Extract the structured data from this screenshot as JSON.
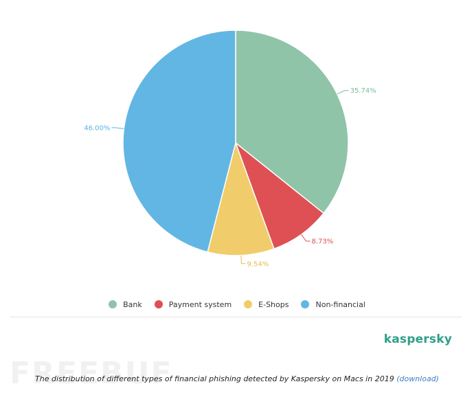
{
  "chart_data": {
    "type": "pie",
    "categories": [
      "Bank",
      "Payment system",
      "E-Shops",
      "Non-financial"
    ],
    "values": [
      35.74,
      8.73,
      9.54,
      46.0
    ],
    "labels": [
      "35.74%",
      "8.73%",
      "9.54%",
      "46.00%"
    ],
    "colors": [
      "#8fc4a8",
      "#de5053",
      "#f0cc6a",
      "#62b6e3"
    ],
    "label_colors": [
      "#7dbb98",
      "#de5053",
      "#e4bb4e",
      "#5ab3e2"
    ],
    "legend_position": "bottom",
    "start_angle_deg": 0,
    "direction": "clockwise"
  },
  "legend": {
    "items": [
      {
        "label": "Bank",
        "color": "#8fc4a8"
      },
      {
        "label": "Payment system",
        "color": "#de5053"
      },
      {
        "label": "E-Shops",
        "color": "#f0cc6a"
      },
      {
        "label": "Non-financial",
        "color": "#62b6e3"
      }
    ]
  },
  "brand": {
    "name": "kaspersky",
    "color": "#2f9e8a"
  },
  "watermark": {
    "text": "FREEBUF"
  },
  "caption": {
    "text": "The distribution of different types of financial phishing detected by Kaspersky on Macs in 2019",
    "link_text": "(download)",
    "link_color": "#3a7fc2"
  }
}
